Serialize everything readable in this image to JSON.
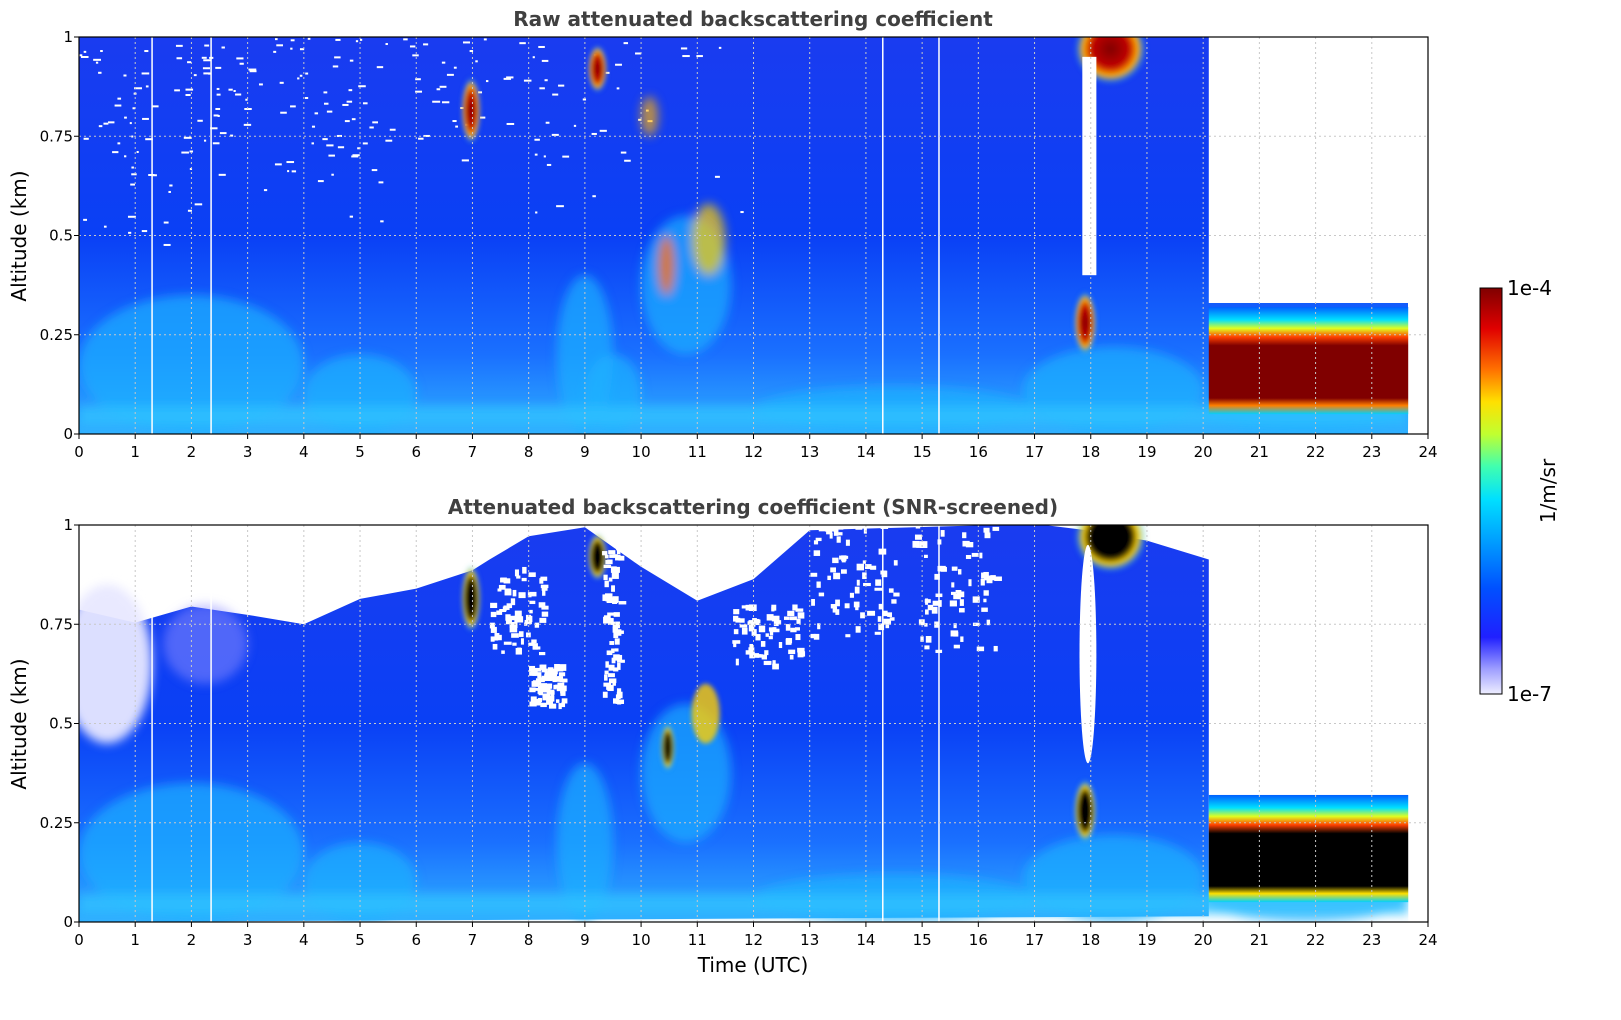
{
  "chart_data": [
    {
      "type": "heatmap",
      "title": "Raw attenuated backscattering coefficient",
      "xlabel": "",
      "ylabel": "Altitude (km)",
      "xlim": [
        0,
        24
      ],
      "ylim": [
        0,
        1
      ],
      "x_ticks": [
        "0",
        "1",
        "2",
        "3",
        "4",
        "5",
        "6",
        "7",
        "8",
        "9",
        "10",
        "11",
        "12",
        "13",
        "14",
        "15",
        "16",
        "17",
        "18",
        "19",
        "20",
        "21",
        "22",
        "23",
        "24"
      ],
      "y_ticks": [
        "0",
        "0.25",
        "0.5",
        "0.75",
        "1"
      ],
      "x_tick_values": [
        0,
        1,
        2,
        3,
        4,
        5,
        6,
        7,
        8,
        9,
        10,
        11,
        12,
        13,
        14,
        15,
        16,
        17,
        18,
        19,
        20,
        21,
        22,
        23,
        24
      ],
      "y_tick_values": [
        0,
        0.25,
        0.5,
        0.75,
        1
      ],
      "grid": true,
      "data_end_hour": 23.65,
      "features": [
        {
          "name": "thick low cloud layer",
          "x_range": [
            20.1,
            23.65
          ],
          "top_km": 0.32,
          "base_km": 0.12
        },
        {
          "name": "cloud patch",
          "x_range": [
            17.7,
            18.1
          ],
          "center_km": 0.27
        },
        {
          "name": "high cloud",
          "x_range": [
            17.8,
            18.9
          ],
          "center_km": 0.96
        },
        {
          "name": "cloud patch",
          "x_range": [
            6.8,
            7.1
          ],
          "center_km": 0.81
        },
        {
          "name": "cloud patch",
          "x_range": [
            9.1,
            9.4
          ],
          "center_km": 0.92
        }
      ]
    },
    {
      "type": "heatmap",
      "title": "Attenuated backscattering coefficient (SNR-screened)",
      "xlabel": "Time (UTC)",
      "ylabel": "Altitude (km)",
      "xlim": [
        0,
        24
      ],
      "ylim": [
        0,
        1
      ],
      "x_ticks": [
        "0",
        "1",
        "2",
        "3",
        "4",
        "5",
        "6",
        "7",
        "8",
        "9",
        "10",
        "11",
        "12",
        "13",
        "14",
        "15",
        "16",
        "17",
        "18",
        "19",
        "20",
        "21",
        "22",
        "23",
        "24"
      ],
      "y_ticks": [
        "0",
        "0.25",
        "0.5",
        "0.75",
        "1"
      ],
      "x_tick_values": [
        0,
        1,
        2,
        3,
        4,
        5,
        6,
        7,
        8,
        9,
        10,
        11,
        12,
        13,
        14,
        15,
        16,
        17,
        18,
        19,
        20,
        21,
        22,
        23,
        24
      ],
      "y_tick_values": [
        0,
        0.25,
        0.5,
        0.75,
        1
      ],
      "grid": true,
      "data_end_hour": 23.65,
      "features": [
        {
          "name": "saturated low cloud layer",
          "x_range": [
            20.1,
            23.65
          ],
          "top_km": 0.32,
          "base_km": 0.12
        },
        {
          "name": "screened gap",
          "x_range": [
            17.8,
            18.1
          ],
          "range_km": [
            0.4,
            0.95
          ]
        }
      ]
    }
  ],
  "colorbar": {
    "label": "1/m/sr",
    "max_label": "1e-4",
    "min_label": "1e-7",
    "vmin": 1e-07,
    "vmax": 0.0001,
    "scale": "log",
    "colors": [
      "#eeeeff",
      "#a0a0ff",
      "#2020ff",
      "#0050ff",
      "#00a0ff",
      "#00e0ff",
      "#40ffb0",
      "#c0ff30",
      "#ffe000",
      "#ff7000",
      "#e00000",
      "#800000"
    ]
  }
}
